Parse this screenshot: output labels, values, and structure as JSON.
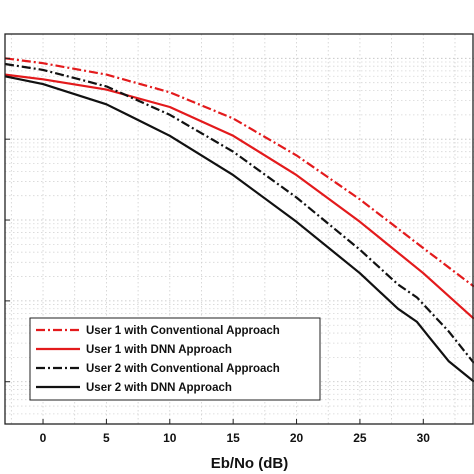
{
  "chart_data": {
    "type": "line",
    "xlabel": "Eb/No (dB)",
    "ylabel": "",
    "xlim": [
      -3,
      34
    ],
    "yscale": "log",
    "ylim": [
      3e-05,
      2
    ],
    "xticks": [
      0,
      5,
      10,
      15,
      20,
      25,
      30
    ],
    "grid": true,
    "legend_position": "bottom-left",
    "series": [
      {
        "name": "User 1 with Conventional Approach",
        "color": "#e31a1c",
        "style": "dashdot",
        "x": [
          -3,
          0,
          5,
          10,
          15,
          20,
          25,
          30,
          34
        ],
        "y": [
          1.0,
          0.87,
          0.63,
          0.38,
          0.18,
          0.063,
          0.018,
          0.0045,
          0.0015
        ]
      },
      {
        "name": "User 1 with DNN Approach",
        "color": "#e31a1c",
        "style": "solid",
        "x": [
          -3,
          0,
          5,
          10,
          15,
          20,
          25,
          30,
          34
        ],
        "y": [
          0.63,
          0.55,
          0.41,
          0.25,
          0.11,
          0.036,
          0.0095,
          0.0022,
          0.0006
        ]
      },
      {
        "name": "User 2 with Conventional Approach",
        "color": "#111111",
        "style": "dashdot",
        "x": [
          -3,
          0,
          5,
          10,
          15,
          20,
          25,
          28,
          29.5,
          30.5,
          32,
          34
        ],
        "y": [
          0.85,
          0.72,
          0.45,
          0.2,
          0.07,
          0.019,
          0.0043,
          0.0016,
          0.0011,
          0.00075,
          0.00042,
          0.00017
        ]
      },
      {
        "name": "User 2 with DNN Approach",
        "color": "#111111",
        "style": "solid",
        "x": [
          -3,
          0,
          5,
          10,
          15,
          20,
          25,
          28,
          29.5,
          30.5,
          32,
          34
        ],
        "y": [
          0.6,
          0.48,
          0.27,
          0.11,
          0.036,
          0.0095,
          0.0022,
          0.0008,
          0.00055,
          0.00035,
          0.00018,
          0.0001
        ]
      }
    ]
  }
}
